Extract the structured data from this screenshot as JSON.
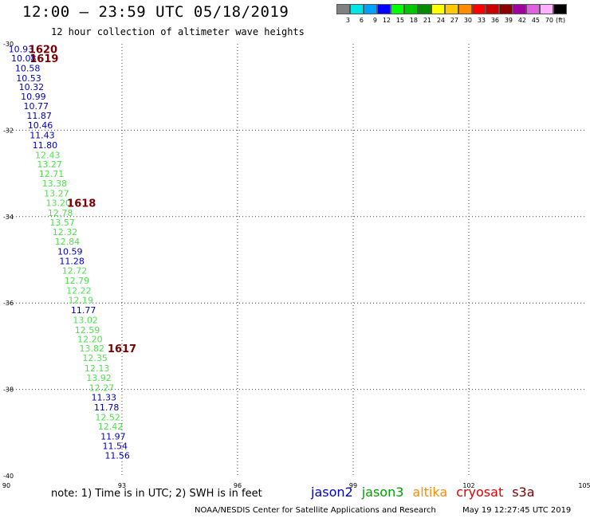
{
  "header": {
    "title": "12:00 – 23:59 UTC 05/18/2019",
    "subtitle": "12 hour collection of altimeter wave heights"
  },
  "legend": {
    "unit": "(ft)",
    "colors": [
      "#808080",
      "#00e5e5",
      "#00a0ff",
      "#0000ff",
      "#00ff00",
      "#00c800",
      "#008c00",
      "#ffff00",
      "#ffc800",
      "#ff8c00",
      "#ff0000",
      "#c80000",
      "#8c0000",
      "#a000a0",
      "#e060e0",
      "#ffb0ff",
      "#000000"
    ],
    "labels": [
      "3",
      "6",
      "9",
      "12",
      "15",
      "18",
      "21",
      "24",
      "27",
      "30",
      "33",
      "36",
      "39",
      "42",
      "45",
      "70"
    ]
  },
  "chart_data": {
    "type": "scatter",
    "x_ticks": [
      "90",
      "93",
      "96",
      "99",
      "102",
      "105"
    ],
    "y_ticks": [
      "-30",
      "-32",
      "-34",
      "-36",
      "-38",
      "-40"
    ],
    "xlim": [
      90,
      105
    ],
    "ylim": [
      -40,
      -30
    ],
    "grid": true,
    "colors": {
      "blue": "#0000c8",
      "green": "#50e050",
      "maroon": "#780000"
    },
    "points": [
      {
        "lon": 90.38,
        "lat": -30.12,
        "value": "10.93",
        "color": "blue"
      },
      {
        "lon": 90.45,
        "lat": -30.33,
        "value": "10.08",
        "color": "blue"
      },
      {
        "lon": 90.55,
        "lat": -30.56,
        "value": "10.58",
        "color": "blue"
      },
      {
        "lon": 90.58,
        "lat": -30.79,
        "value": "10.53",
        "color": "blue"
      },
      {
        "lon": 90.65,
        "lat": -31.0,
        "value": "10.32",
        "color": "blue"
      },
      {
        "lon": 90.7,
        "lat": -31.22,
        "value": "10.99",
        "color": "blue"
      },
      {
        "lon": 90.77,
        "lat": -31.44,
        "value": "10.77",
        "color": "blue"
      },
      {
        "lon": 90.85,
        "lat": -31.66,
        "value": "11.87",
        "color": "blue"
      },
      {
        "lon": 90.88,
        "lat": -31.88,
        "value": "10.46",
        "color": "blue"
      },
      {
        "lon": 90.93,
        "lat": -32.11,
        "value": "11.43",
        "color": "blue"
      },
      {
        "lon": 91.0,
        "lat": -32.34,
        "value": "11.80",
        "color": "blue"
      },
      {
        "lon": 91.07,
        "lat": -32.57,
        "value": "12.43",
        "color": "green"
      },
      {
        "lon": 91.12,
        "lat": -32.79,
        "value": "13.27",
        "color": "green"
      },
      {
        "lon": 91.17,
        "lat": -33.01,
        "value": "12.71",
        "color": "green"
      },
      {
        "lon": 91.25,
        "lat": -33.23,
        "value": "13.38",
        "color": "green"
      },
      {
        "lon": 91.3,
        "lat": -33.46,
        "value": "13.27",
        "color": "green"
      },
      {
        "lon": 91.35,
        "lat": -33.68,
        "value": "13.20",
        "color": "green"
      },
      {
        "lon": 91.4,
        "lat": -33.91,
        "value": "12.78",
        "color": "green"
      },
      {
        "lon": 91.45,
        "lat": -34.13,
        "value": "13.57",
        "color": "green"
      },
      {
        "lon": 91.52,
        "lat": -34.35,
        "value": "12.32",
        "color": "green"
      },
      {
        "lon": 91.58,
        "lat": -34.58,
        "value": "12.84",
        "color": "green"
      },
      {
        "lon": 91.65,
        "lat": -34.81,
        "value": "10.59",
        "color": "blue"
      },
      {
        "lon": 91.7,
        "lat": -35.03,
        "value": "11.28",
        "color": "blue"
      },
      {
        "lon": 91.77,
        "lat": -35.25,
        "value": "12.72",
        "color": "green"
      },
      {
        "lon": 91.83,
        "lat": -35.48,
        "value": "12.79",
        "color": "green"
      },
      {
        "lon": 91.88,
        "lat": -35.71,
        "value": "12.22",
        "color": "green"
      },
      {
        "lon": 91.93,
        "lat": -35.93,
        "value": "12.19",
        "color": "green"
      },
      {
        "lon": 92.0,
        "lat": -36.16,
        "value": "11.77",
        "color": "blue"
      },
      {
        "lon": 92.05,
        "lat": -36.39,
        "value": "13.02",
        "color": "green"
      },
      {
        "lon": 92.1,
        "lat": -36.62,
        "value": "12.59",
        "color": "green"
      },
      {
        "lon": 92.17,
        "lat": -36.84,
        "value": "12.20",
        "color": "green"
      },
      {
        "lon": 92.22,
        "lat": -37.05,
        "value": "13.82",
        "color": "green"
      },
      {
        "lon": 92.3,
        "lat": -37.27,
        "value": "12.35",
        "color": "green"
      },
      {
        "lon": 92.35,
        "lat": -37.51,
        "value": "12.13",
        "color": "green"
      },
      {
        "lon": 92.4,
        "lat": -37.73,
        "value": "13.92",
        "color": "green"
      },
      {
        "lon": 92.47,
        "lat": -37.96,
        "value": "12.27",
        "color": "green"
      },
      {
        "lon": 92.53,
        "lat": -38.18,
        "value": "11.33",
        "color": "blue"
      },
      {
        "lon": 92.6,
        "lat": -38.41,
        "value": "11.78",
        "color": "blue"
      },
      {
        "lon": 92.63,
        "lat": -38.64,
        "value": "12.52",
        "color": "green"
      },
      {
        "lon": 92.7,
        "lat": -38.86,
        "value": "12.42",
        "color": "green"
      },
      {
        "lon": 92.77,
        "lat": -39.09,
        "value": "11.97",
        "color": "blue"
      },
      {
        "lon": 92.82,
        "lat": -39.31,
        "value": "11.54",
        "color": "blue"
      },
      {
        "lon": 92.88,
        "lat": -39.53,
        "value": "11.56",
        "color": "blue"
      }
    ],
    "time_labels": [
      {
        "lon": 90.95,
        "lat": -30.12,
        "label": "1620"
      },
      {
        "lon": 90.98,
        "lat": -30.33,
        "label": "1619"
      },
      {
        "lon": 91.95,
        "lat": -33.68,
        "label": "1618"
      },
      {
        "lon": 93.0,
        "lat": -37.05,
        "label": "1617"
      }
    ]
  },
  "note": "note:  1) Time is in UTC;  2) SWH is in feet",
  "satellites": [
    {
      "name": "jason2",
      "color": "#0000c8"
    },
    {
      "name": "jason3",
      "color": "#00a000"
    },
    {
      "name": "altika",
      "color": "#ff8c00"
    },
    {
      "name": "cryosat",
      "color": "#e00000"
    },
    {
      "name": "s3a",
      "color": "#780000"
    }
  ],
  "footer": {
    "credit": "NOAA/NESDIS Center for Satellite Applications and Research",
    "timestamp": "May 19 12:27:45 UTC 2019"
  }
}
